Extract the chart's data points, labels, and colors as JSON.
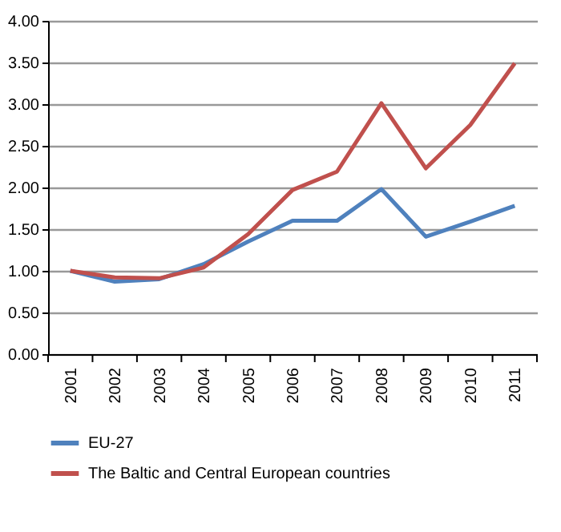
{
  "chart_data": {
    "type": "line",
    "categories": [
      "2001",
      "2002",
      "2003",
      "2004",
      "2005",
      "2006",
      "2007",
      "2008",
      "2009",
      "2010",
      "2011"
    ],
    "series": [
      {
        "name": "EU-27",
        "color": "#4f81bd",
        "values": [
          1.0,
          0.87,
          0.9,
          1.08,
          1.35,
          1.6,
          1.6,
          1.98,
          1.41,
          1.59,
          1.78
        ]
      },
      {
        "name": "The Baltic and Central European countries",
        "color": "#c0504d",
        "values": [
          1.0,
          0.92,
          0.91,
          1.04,
          1.44,
          1.97,
          2.19,
          3.01,
          2.23,
          2.75,
          3.49
        ]
      }
    ],
    "ylim": [
      0,
      4
    ],
    "yticks": [
      {
        "value": 0,
        "label": "0.00"
      },
      {
        "value": 0.5,
        "label": "0.50"
      },
      {
        "value": 1,
        "label": "1.00"
      },
      {
        "value": 1.5,
        "label": "1.50"
      },
      {
        "value": 2,
        "label": "2.00"
      },
      {
        "value": 2.5,
        "label": "2.50"
      },
      {
        "value": 3,
        "label": "3.00"
      },
      {
        "value": 3.5,
        "label": "3.50"
      },
      {
        "value": 4,
        "label": "4.00"
      }
    ],
    "grid": "y",
    "legend": "bottom"
  }
}
